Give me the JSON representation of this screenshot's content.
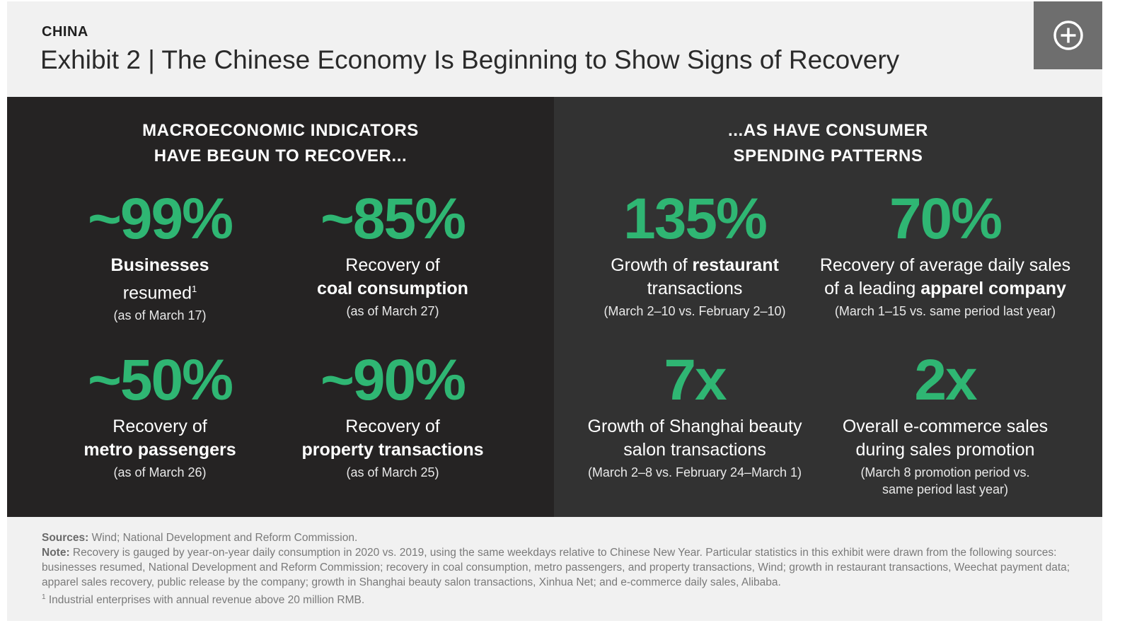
{
  "header": {
    "eyebrow": "CHINA",
    "title": "Exhibit 2 | The Chinese Economy Is Beginning to Show Signs of Recovery",
    "expand_icon": "plus-circle-icon"
  },
  "left_panel": {
    "title_line1": "MACROECONOMIC INDICATORS",
    "title_line2": "HAVE BEGUN TO RECOVER...",
    "stats": [
      {
        "value": "~99%",
        "line1_bold": "Businesses",
        "line2_pre": "resumed",
        "line2_sup": "1",
        "date": "(as of March 17)"
      },
      {
        "value": "~85%",
        "line1": "Recovery of",
        "line2_bold": "coal consumption",
        "date": "(as of March 27)"
      },
      {
        "value": "~50%",
        "line1": "Recovery of",
        "line2_bold": "metro passengers",
        "date": "(as of March 26)"
      },
      {
        "value": "~90%",
        "line1": "Recovery of",
        "line2_bold": "property transactions",
        "date": "(as of March 25)"
      }
    ]
  },
  "right_panel": {
    "title_line1": "...AS HAVE CONSUMER",
    "title_line2": "SPENDING PATTERNS",
    "stats": [
      {
        "value": "135%",
        "line1_pre": "Growth of ",
        "line1_bold": "restaurant",
        "line2": "transactions",
        "date": "(March 2–10 vs. February 2–10)"
      },
      {
        "value": "70%",
        "line1": "Recovery of average daily sales",
        "line2_pre": "of a leading ",
        "line2_bold": "apparel company",
        "date": "(March 1–15 vs. same period last year)"
      },
      {
        "value": "7x",
        "line1": "Growth of Shanghai beauty",
        "line2": "salon transactions",
        "date": "(March 2–8 vs. February 24–March 1)"
      },
      {
        "value": "2x",
        "line1": "Overall e-commerce sales",
        "line2": "during sales promotion",
        "date": "(March 8 promotion period vs.",
        "date2": "same period last year)"
      }
    ]
  },
  "footer": {
    "sources_label": "Sources:",
    "sources_text": " Wind; National Development and Reform Commission.",
    "note_label": "Note:",
    "note_text": " Recovery is gauged by year-on-year daily consumption in 2020 vs. 2019, using the same weekdays relative to Chinese New Year. Particular statistics in this exhibit were drawn from the following sources: businesses resumed, National Development and Reform Commission; recovery in coal consumption, metro passengers, and property transactions, Wind; growth in restaurant transactions, Weechat payment data; apparel sales recovery, public release by the company; growth in Shanghai beauty salon transactions, Xinhua Net; and e-commerce daily sales, Alibaba.",
    "footnote_mark": "1",
    "footnote_text": " Industrial enterprises with annual revenue above 20 million RMB."
  },
  "colors": {
    "accent_green": "#2fb673",
    "left_panel_bg": "#252323",
    "right_panel_bg": "#323232",
    "page_bg": "#f1f1f1"
  }
}
